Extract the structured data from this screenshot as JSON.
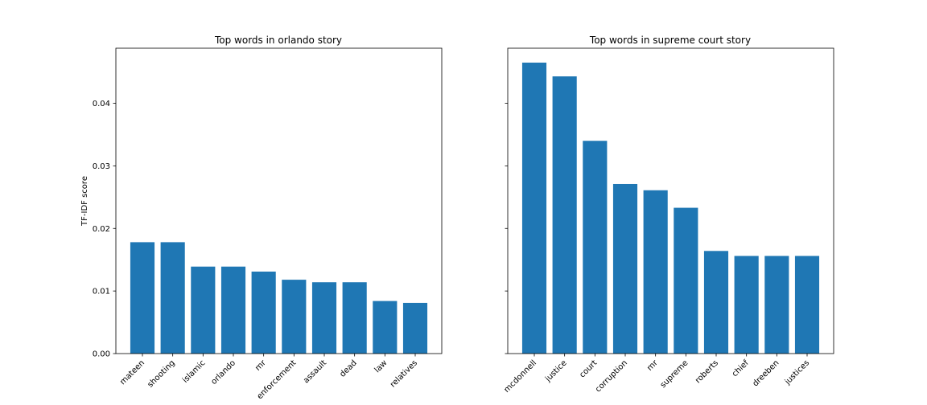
{
  "chart_data": [
    {
      "type": "bar",
      "title": "Top words in orlando story",
      "xlabel": "",
      "ylabel": "TF-IDF score",
      "ylim": [
        0,
        0.0488
      ],
      "yticks": [
        "0.00",
        "0.01",
        "0.02",
        "0.03",
        "0.04"
      ],
      "categories": [
        "mateen",
        "shooting",
        "islamic",
        "orlando",
        "mr",
        "enforcement",
        "assault",
        "dead",
        "law",
        "relatives"
      ],
      "values": [
        0.0178,
        0.0178,
        0.0139,
        0.0139,
        0.0131,
        0.0118,
        0.0114,
        0.0114,
        0.0084,
        0.0081
      ],
      "color": "#1f77b4"
    },
    {
      "type": "bar",
      "title": "Top words in supreme court story",
      "xlabel": "",
      "ylabel": "",
      "ylim": [
        0,
        0.0488
      ],
      "yticks": [
        "",
        "",
        "",
        "",
        ""
      ],
      "categories": [
        "mcdonnell",
        "justice",
        "court",
        "corruption",
        "mr",
        "supreme",
        "roberts",
        "chief",
        "dreeben",
        "justices"
      ],
      "values": [
        0.0465,
        0.0443,
        0.034,
        0.0271,
        0.0261,
        0.0233,
        0.0164,
        0.0156,
        0.0156,
        0.0156
      ],
      "color": "#1f77b4"
    }
  ]
}
